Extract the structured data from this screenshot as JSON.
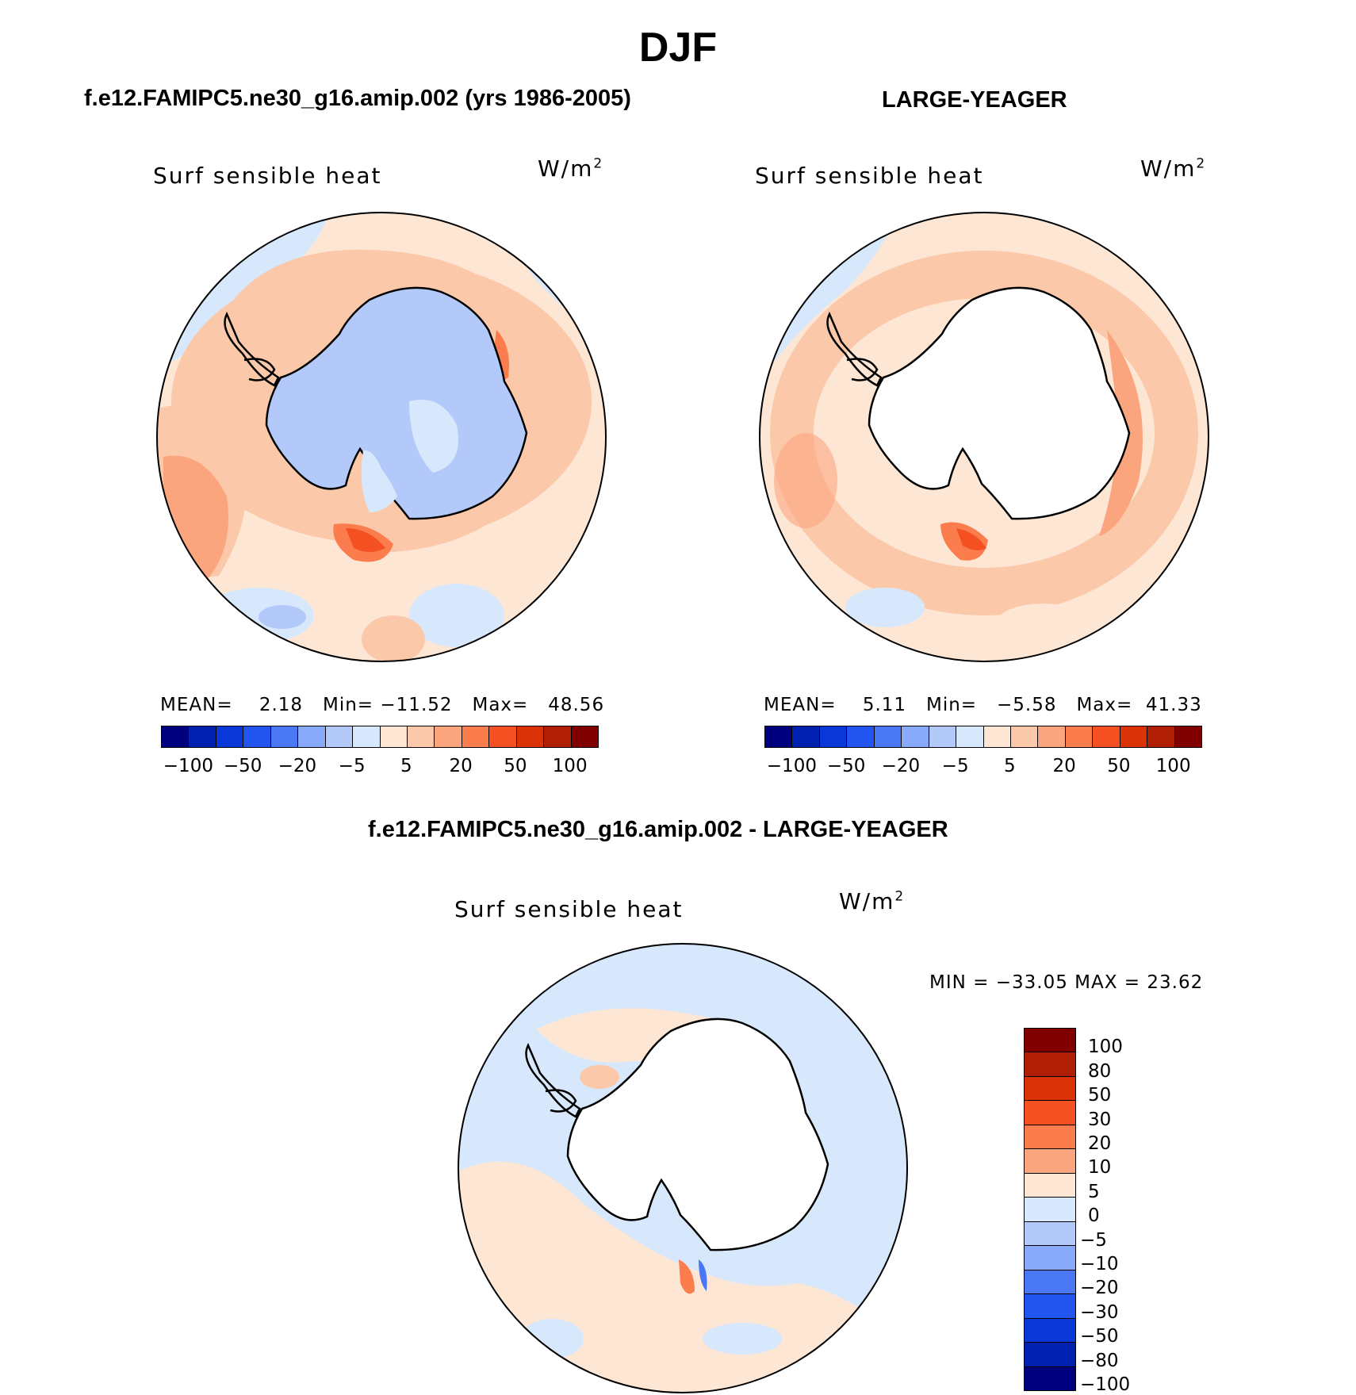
{
  "figure": {
    "title": "DJF",
    "panels": [
      {
        "id": "model",
        "title": "f.e12.FAMIPC5.ne30_g16.amip.002 (yrs 1986-2005)",
        "variable": "Surf sensible heat",
        "units_base": "W/m",
        "units_exp": "2",
        "stats": {
          "mean_label": "MEAN=",
          "mean": "2.18",
          "min_label": "Min=",
          "min": "−11.52",
          "max_label": "Max=",
          "max": "48.56"
        },
        "land_fill": "#b0c8f5"
      },
      {
        "id": "obs",
        "title": "LARGE-YEAGER",
        "variable": "Surf sensible heat",
        "units_base": "W/m",
        "units_exp": "2",
        "stats": {
          "mean_label": "MEAN=",
          "mean": "5.11",
          "min_label": "Min=",
          "min": "−5.58",
          "max_label": "Max=",
          "max": "41.33"
        },
        "land_fill": "#ffffff"
      },
      {
        "id": "diff",
        "title": "f.e12.FAMIPC5.ne30_g16.amip.002 - LARGE-YEAGER",
        "variable": "Surf sensible heat",
        "units_base": "W/m",
        "units_exp": "2",
        "minmax": "MIN = −33.05 MAX =   23.62",
        "land_fill": "#ffffff"
      }
    ],
    "colorbar_horizontal": {
      "colors": [
        "#00007f",
        "#0020b0",
        "#0a38d8",
        "#2255f0",
        "#4a78f4",
        "#88aaf8",
        "#b2c9fa",
        "#d8e8fc",
        "#fde6d4",
        "#fcc8aa",
        "#fba57f",
        "#fb7c4c",
        "#f55022",
        "#dc3208",
        "#b01e06",
        "#800000"
      ],
      "labels": [
        "−100",
        "−50",
        "−20",
        "−5",
        "5",
        "20",
        "50",
        "100"
      ]
    },
    "colorbar_vertical": {
      "colors": [
        "#800000",
        "#b01e06",
        "#dc3208",
        "#f55022",
        "#fb7c4c",
        "#fba57f",
        "#fde6d4",
        "#d8e8fc",
        "#b2c9fa",
        "#88aaf8",
        "#4a78f4",
        "#2255f0",
        "#0a38d8",
        "#0020b0",
        "#00007f"
      ],
      "labels": [
        "100",
        "80",
        "50",
        "30",
        "20",
        "10",
        "5",
        "0",
        "−5",
        "−10",
        "−20",
        "−30",
        "−50",
        "−80",
        "−100"
      ]
    }
  }
}
